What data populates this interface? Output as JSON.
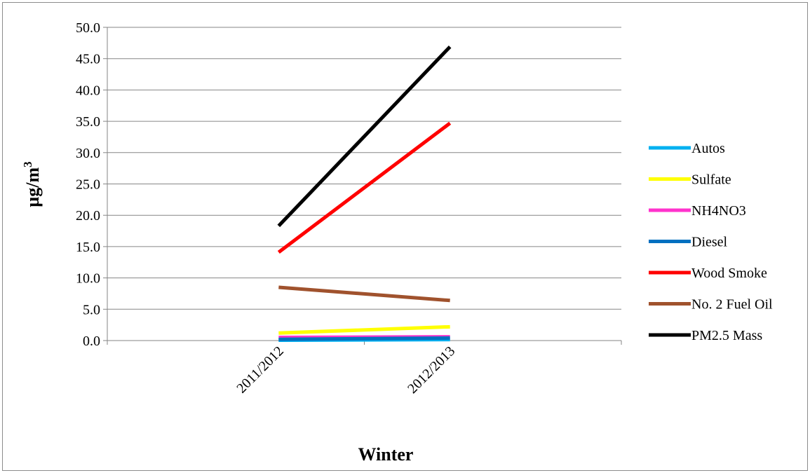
{
  "chart_data": {
    "type": "line",
    "title": "",
    "xlabel": "Winter",
    "ylabel": "µg/m³",
    "ylabel_base": "µg/m",
    "ylabel_sup": "3",
    "categories": [
      "2011/2012",
      "2012/2013"
    ],
    "ylim": [
      0,
      50
    ],
    "yticks": [
      "0.0",
      "5.0",
      "10.0",
      "15.0",
      "20.0",
      "25.0",
      "30.0",
      "35.0",
      "40.0",
      "45.0",
      "50.0"
    ],
    "grid": true,
    "legend_position": "right",
    "series": [
      {
        "name": "Autos",
        "color": "#00b0f0",
        "values": [
          0.05,
          0.15
        ]
      },
      {
        "name": "Sulfate",
        "color": "#ffff00",
        "values": [
          1.2,
          2.2
        ]
      },
      {
        "name": "NH4NO3",
        "color": "#ff33cc",
        "values": [
          0.5,
          0.6
        ]
      },
      {
        "name": "Diesel",
        "color": "#0070c0",
        "values": [
          0.2,
          0.4
        ]
      },
      {
        "name": "Wood Smoke",
        "color": "#ff0000",
        "values": [
          14.1,
          34.7
        ]
      },
      {
        "name": "No. 2 Fuel Oil",
        "color": "#a0522d",
        "values": [
          8.5,
          6.4
        ]
      },
      {
        "name": "PM2.5 Mass",
        "color": "#000000",
        "values": [
          18.3,
          46.9
        ]
      }
    ]
  }
}
